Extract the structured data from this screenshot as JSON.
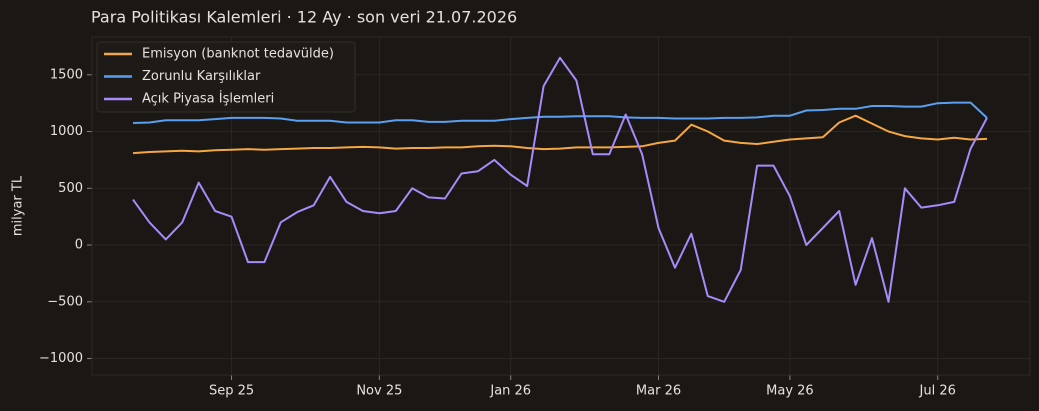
{
  "chart_data": {
    "type": "line",
    "title": "Para Politikası Kalemleri · 12 Ay · son veri 21.07.2026",
    "y_label": "milyar TL",
    "categories": [
      null,
      null,
      null,
      null,
      null,
      null,
      "Sep 25",
      null,
      null,
      null,
      null,
      null,
      null,
      null,
      null,
      "Nov 25",
      null,
      null,
      null,
      null,
      null,
      null,
      null,
      "Jan 26",
      null,
      null,
      null,
      null,
      null,
      null,
      null,
      null,
      "Mar 26",
      null,
      null,
      null,
      null,
      null,
      null,
      null,
      "May 26",
      null,
      null,
      null,
      null,
      null,
      null,
      null,
      null,
      "Jul 26",
      null,
      null,
      null
    ],
    "series": [
      {
        "name": "Emisyon (banknot tedavülde)",
        "color": "#f4a742",
        "values": [
          810,
          820,
          825,
          830,
          825,
          835,
          840,
          845,
          840,
          845,
          850,
          855,
          855,
          860,
          865,
          860,
          850,
          855,
          855,
          860,
          860,
          870,
          875,
          870,
          855,
          845,
          850,
          860,
          860,
          860,
          865,
          870,
          900,
          920,
          1060,
          1000,
          920,
          900,
          890,
          910,
          930,
          940,
          950,
          1080,
          1140,
          1070,
          1000,
          960,
          940,
          930,
          945,
          930,
          935
        ]
      },
      {
        "name": "Zorunlu Karşılıklar",
        "color": "#5aa0f0",
        "values": [
          1075,
          1080,
          1100,
          1100,
          1100,
          1110,
          1120,
          1120,
          1120,
          1115,
          1095,
          1095,
          1095,
          1080,
          1080,
          1080,
          1100,
          1100,
          1085,
          1085,
          1095,
          1095,
          1095,
          1110,
          1120,
          1130,
          1130,
          1135,
          1135,
          1135,
          1125,
          1120,
          1120,
          1115,
          1115,
          1115,
          1120,
          1120,
          1125,
          1140,
          1140,
          1185,
          1190,
          1200,
          1200,
          1225,
          1225,
          1220,
          1220,
          1250,
          1255,
          1255,
          1120
        ]
      },
      {
        "name": "Açık Piyasa İşlemleri",
        "color": "#a78bfa",
        "values": [
          400,
          200,
          50,
          200,
          550,
          300,
          250,
          -150,
          -150,
          200,
          290,
          350,
          600,
          380,
          300,
          280,
          300,
          500,
          420,
          410,
          630,
          650,
          750,
          620,
          520,
          1400,
          1650,
          1450,
          800,
          800,
          1150,
          800,
          150,
          -200,
          100,
          -450,
          -500,
          -220,
          700,
          700,
          430,
          0,
          150,
          300,
          -350,
          60,
          -500,
          500,
          330,
          350,
          380,
          850,
          1120
        ]
      }
    ],
    "ylim": [
      -1145,
      1833
    ],
    "yticks": [
      {
        "value": -1000,
        "label": "−1000"
      },
      {
        "value": -500,
        "label": "−500"
      },
      0,
      500,
      1000,
      1500
    ],
    "grid": true,
    "legend": "upper-left"
  }
}
